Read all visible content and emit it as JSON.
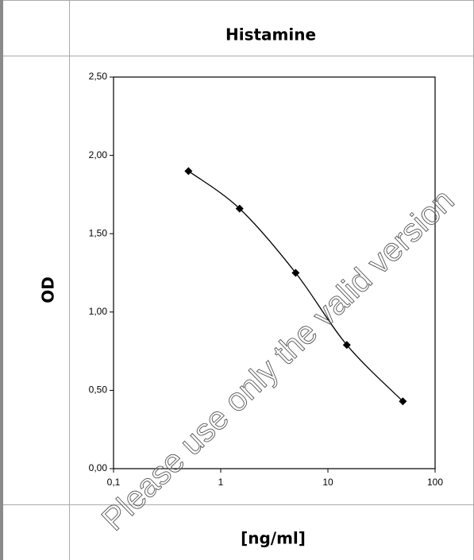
{
  "table": {
    "header": "Histamine",
    "y_label": "OD",
    "x_label": "[ng/ml]"
  },
  "chart_data": {
    "type": "line",
    "x": [
      0.5,
      1.5,
      5,
      15,
      50
    ],
    "series": [
      {
        "color": "#000000",
        "values": [
          1.9,
          1.66,
          1.25,
          0.79,
          0.43
        ]
      }
    ],
    "xlim": [
      0.1,
      100
    ],
    "ylim": [
      0,
      2.5
    ],
    "xscale": "log",
    "xticks": [
      {
        "value": 0.1,
        "label": "0,1"
      },
      1,
      10,
      100
    ],
    "yticks": [
      {
        "value": 0,
        "label": "0,00"
      },
      {
        "value": 0.5,
        "label": "0,50"
      },
      {
        "value": 1,
        "label": "1,00"
      },
      {
        "value": 1.5,
        "label": "1,50"
      },
      {
        "value": 2,
        "label": "2,00"
      },
      {
        "value": 2.5,
        "label": "2,50"
      }
    ],
    "marker": "diamond",
    "smooth": true
  },
  "watermark": "Please use only the valid version"
}
